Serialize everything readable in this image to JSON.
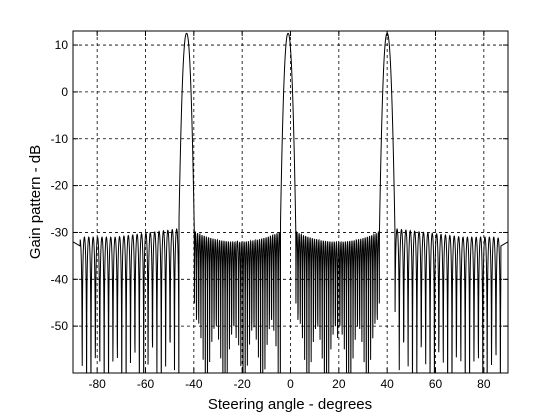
{
  "chart_data": {
    "type": "line",
    "title": "",
    "xlabel": "Steering angle - degrees",
    "ylabel": "Gain pattern - dB",
    "xlim": [
      -90,
      90
    ],
    "ylim": [
      -60,
      13
    ],
    "xticks": [
      -80,
      -60,
      -40,
      -20,
      0,
      20,
      40,
      60,
      80
    ],
    "yticks": [
      10,
      0,
      -10,
      -20,
      -30,
      -40,
      -50
    ],
    "grid": true,
    "grid_style": "dashed",
    "line_color": "#000000",
    "series": [
      {
        "main_lobes_deg": [
          -43,
          -1,
          40
        ],
        "main_lobe_peak_db": 12.5,
        "sidelobe_level_near_db": -29,
        "sidelobe_level_center_db": -32,
        "sidelobe_level_far_db": -31,
        "edge_level_db": -32
      }
    ]
  }
}
